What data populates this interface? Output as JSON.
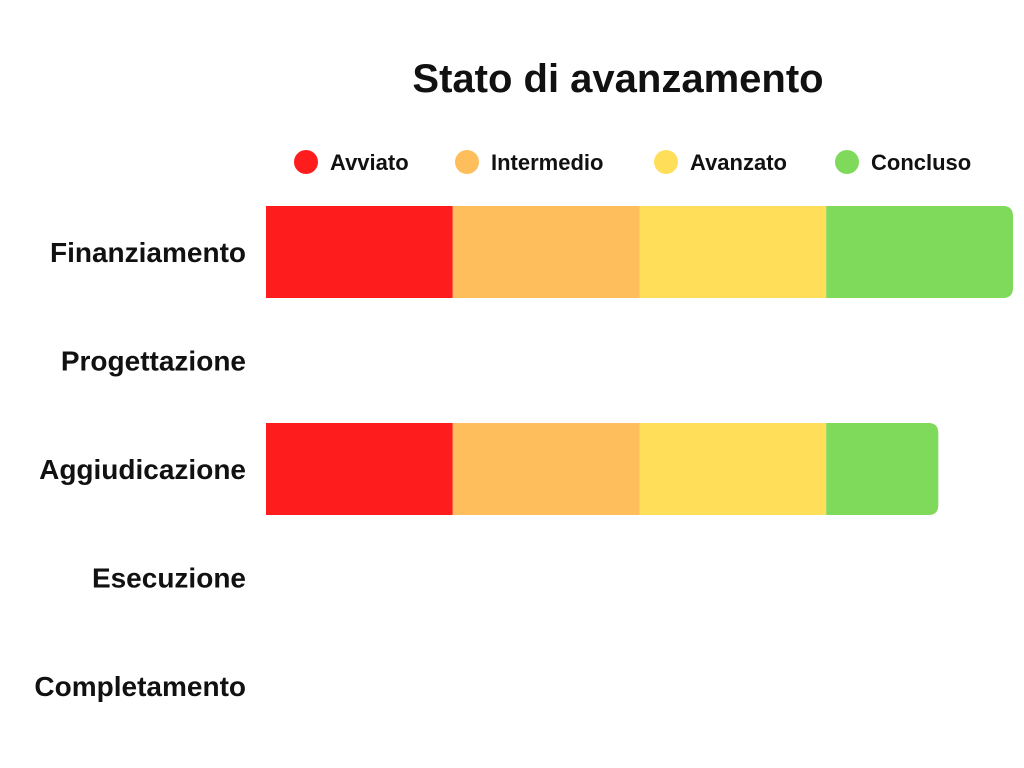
{
  "chart_data": {
    "type": "bar",
    "orientation": "horizontal",
    "stacked": true,
    "title": "Stato di avanzamento",
    "xlabel": "",
    "ylabel": "",
    "legend_position": "top",
    "grid": false,
    "xlim": [
      0,
      4
    ],
    "categories": [
      "Finanziamento",
      "Progettazione",
      "Aggiudicazione",
      "Esecuzione",
      "Completamento"
    ],
    "series": [
      {
        "name": "Avviato",
        "color": "#ff1c1c",
        "values": [
          1,
          0,
          1,
          0,
          0
        ]
      },
      {
        "name": "Intermedio",
        "color": "#fdbe5b",
        "values": [
          1,
          0,
          1,
          0,
          0
        ]
      },
      {
        "name": "Avanzato",
        "color": "#ffdf5a",
        "values": [
          1,
          0,
          1,
          0,
          0
        ]
      },
      {
        "name": "Concluso",
        "color": "#7fd95a",
        "values": [
          1,
          0,
          0.6,
          0,
          0
        ]
      }
    ]
  }
}
